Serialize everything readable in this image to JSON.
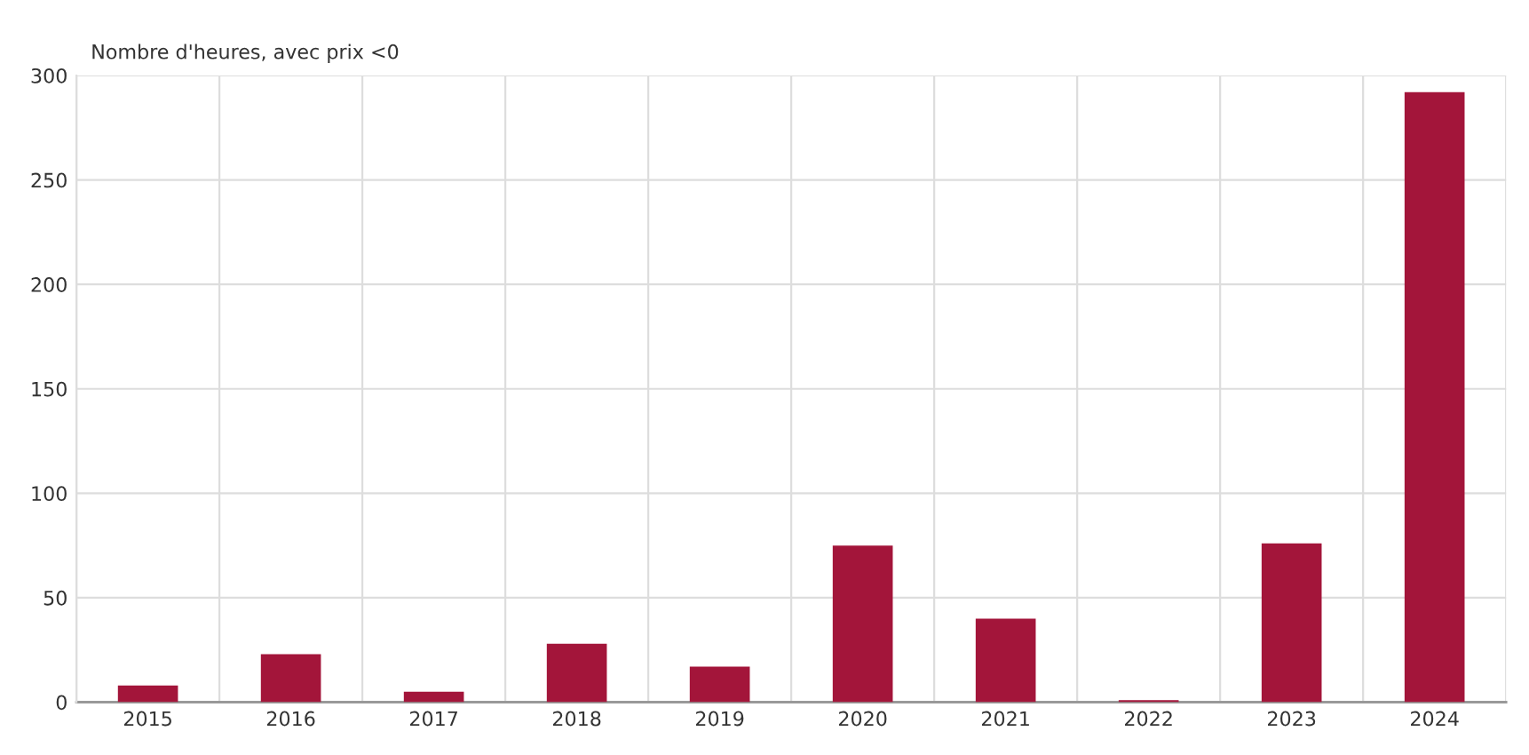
{
  "chart_data": {
    "type": "bar",
    "ylabel": "Nombre d'heures, avec prix <0",
    "categories": [
      "2015",
      "2016",
      "2017",
      "2018",
      "2019",
      "2020",
      "2021",
      "2022",
      "2023",
      "2024"
    ],
    "values": [
      8,
      23,
      5,
      28,
      17,
      75,
      40,
      1,
      76,
      292
    ],
    "color": "#a3153a",
    "ylim": [
      0,
      300
    ],
    "yticks": [
      0,
      50,
      100,
      150,
      200,
      250,
      300
    ],
    "grid": true,
    "legend": false
  }
}
